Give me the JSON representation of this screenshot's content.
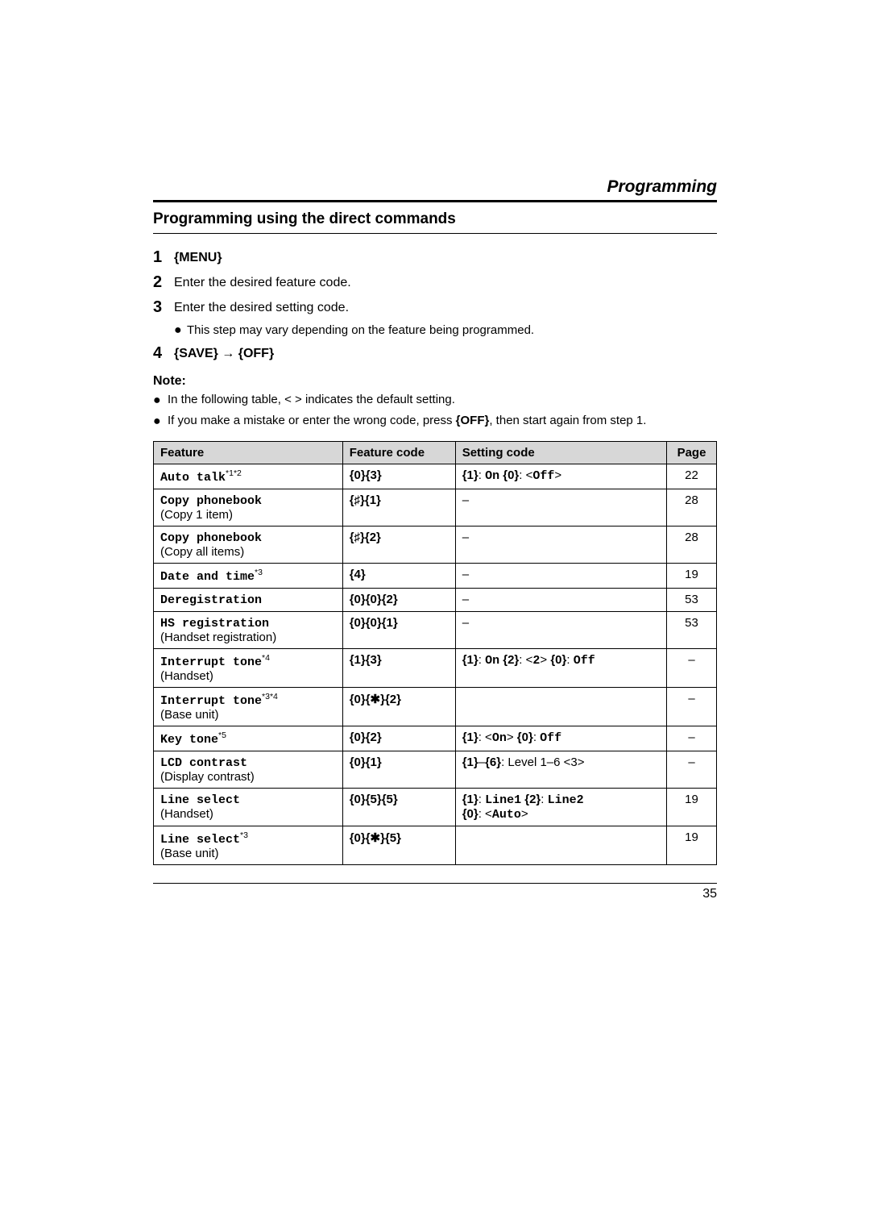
{
  "header": {
    "title": "Programming"
  },
  "section": {
    "title": "Programming using the direct commands"
  },
  "steps": {
    "s1": {
      "num": "1",
      "bold": "{MENU}"
    },
    "s2": {
      "num": "2",
      "text": "Enter the desired feature code."
    },
    "s3": {
      "num": "3",
      "text": "Enter the desired setting code.",
      "sub": "This step may vary depending on the feature being programmed."
    },
    "s4": {
      "num": "4",
      "bold": "{SAVE} → {OFF}"
    }
  },
  "note": {
    "label": "Note:",
    "n1": "In the following table, < > indicates the default setting.",
    "n2_a": "If you make a mistake or enter the wrong code, press ",
    "n2_bold": "{OFF}",
    "n2_b": ", then start again from step 1."
  },
  "table": {
    "headers": {
      "feature": "Feature",
      "code": "Feature code",
      "setting": "Setting code",
      "page": "Page"
    },
    "rows": [
      {
        "feature_code_text": "Auto talk",
        "feature_sup": "*1*2",
        "feature_plain": "",
        "featcode": "{0}{3}",
        "setting_html": "<span class=\"mono-bold\">{1}</span>: <span class=\"code\">On</span> <span class=\"mono-bold\">{0}</span>: &lt;<span class=\"code\">Off</span>&gt;",
        "page": "22",
        "center": false
      },
      {
        "feature_code_text": "Copy phonebook",
        "feature_sup": "",
        "feature_plain": "(Copy 1 item)",
        "featcode": "{♯}{1}",
        "setting_html": "–",
        "page": "28",
        "center": true
      },
      {
        "feature_code_text": "Copy phonebook",
        "feature_sup": "",
        "feature_plain": "(Copy all items)",
        "featcode": "{♯}{2}",
        "setting_html": "–",
        "page": "28",
        "center": true
      },
      {
        "feature_code_text": "Date and time",
        "feature_sup": "*3",
        "feature_plain": "",
        "featcode": "{4}",
        "setting_html": "–",
        "page": "19",
        "center": true
      },
      {
        "feature_code_text": "Deregistration",
        "feature_sup": "",
        "feature_plain": "",
        "featcode": "{0}{0}{2}",
        "setting_html": "–",
        "page": "53",
        "center": true
      },
      {
        "feature_code_text": "HS registration",
        "feature_sup": "",
        "feature_plain": "(Handset registration)",
        "featcode": "{0}{0}{1}",
        "setting_html": "–",
        "page": "53",
        "center": true
      },
      {
        "feature_code_text": "Interrupt tone",
        "feature_sup": "*4",
        "feature_plain": "(Handset)",
        "featcode": "{1}{3}",
        "setting_html": "<span class=\"mono-bold\">{1}</span>: <span class=\"code\">On</span> <span class=\"mono-bold\">{2}</span>: &lt;<span class=\"code\">2</span>&gt; <span class=\"mono-bold\">{0}</span>: <span class=\"code\">Off</span>",
        "page": "–",
        "center": false
      },
      {
        "feature_code_text": "Interrupt tone",
        "feature_sup": "*3*4",
        "feature_plain": "(Base unit)",
        "featcode": "{0}{✱}{2}",
        "setting_html": "",
        "page": "–",
        "center": true
      },
      {
        "feature_code_text": "Key tone",
        "feature_sup": "*5",
        "feature_plain": "",
        "featcode": "{0}{2}",
        "setting_html": "<span class=\"mono-bold\">{1}</span>: &lt;<span class=\"code\">On</span>&gt; <span class=\"mono-bold\">{0}</span>: <span class=\"code\">Off</span>",
        "page": "–",
        "center": false
      },
      {
        "feature_code_text": "LCD contrast",
        "feature_sup": "",
        "feature_plain": "(Display contrast)",
        "featcode": "{0}{1}",
        "setting_html": "<span class=\"mono-bold\">{1}</span>–<span class=\"mono-bold\">{6}</span>: Level 1–6 &lt;3&gt;",
        "page": "–",
        "center": false
      },
      {
        "feature_code_text": "Line select",
        "feature_sup": "",
        "feature_plain": "(Handset)",
        "featcode": "{0}{5}{5}",
        "setting_html": "<span class=\"mono-bold\">{1}</span>: <span class=\"code\">Line1</span> <span class=\"mono-bold\">{2}</span>: <span class=\"code\">Line2</span><br><span class=\"mono-bold\">{0}</span>: &lt;<span class=\"code\">Auto</span>&gt;",
        "page": "19",
        "center": false
      },
      {
        "feature_code_text": "Line select",
        "feature_sup": "*3",
        "feature_plain": "(Base unit)",
        "featcode": "{0}{✱}{5}",
        "setting_html": "",
        "page": "19",
        "center": true
      }
    ]
  },
  "footer": {
    "page": "35"
  }
}
